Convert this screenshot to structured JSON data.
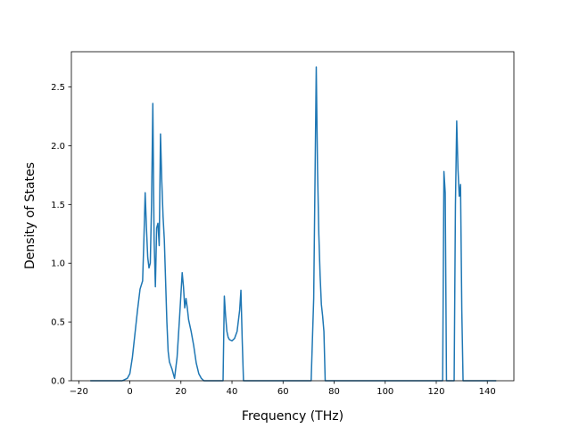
{
  "chart_data": {
    "type": "line",
    "title": "",
    "xlabel": "Frequency (THz)",
    "ylabel": "Density of States",
    "xlim": [
      -22.9,
      150.4
    ],
    "ylim": [
      0,
      2.8
    ],
    "grid": false,
    "line_color": "#1f77b4",
    "x_ticks": [
      -20,
      0,
      20,
      40,
      60,
      80,
      100,
      120,
      140
    ],
    "x_tick_labels": [
      "−20",
      "0",
      "20",
      "40",
      "60",
      "80",
      "100",
      "120",
      "140"
    ],
    "y_ticks": [
      0.0,
      0.5,
      1.0,
      1.5,
      2.0,
      2.5
    ],
    "y_tick_labels": [
      "0.0",
      "0.5",
      "1.0",
      "1.5",
      "2.0",
      "2.5"
    ],
    "series": [
      {
        "x": [
          -15.5,
          -3.0,
          -2.0,
          -1.0,
          0.0,
          1.0,
          2.0,
          3.0,
          4.0,
          5.0,
          5.5,
          6.0,
          6.5,
          7.0,
          7.5,
          8.0,
          8.5,
          9.0,
          9.5,
          10.0,
          10.5,
          11.0,
          11.5,
          12.0,
          12.5,
          13.0,
          13.5,
          14.5,
          15.0,
          15.5,
          16.5,
          17.5,
          18.5,
          19.5,
          20.5,
          21.0,
          21.5,
          22.0,
          22.5,
          23.0,
          23.5,
          24.0,
          25.0,
          26.0,
          27.0,
          28.0,
          29.0,
          30.0,
          36.5,
          37.0,
          37.5,
          38.0,
          38.5,
          39.0,
          40.0,
          41.0,
          42.0,
          43.0,
          43.5,
          44.0,
          44.5,
          45.0,
          71.0,
          72.0,
          73.0,
          73.5,
          74.0,
          74.5,
          75.0,
          75.5,
          76.0,
          76.5,
          77.0,
          122.5,
          123.0,
          123.5,
          124.0,
          124.5,
          125.0,
          127.0,
          127.5,
          128.0,
          128.5,
          129.0,
          129.5,
          130.0,
          130.5,
          131.0,
          143.5
        ],
        "y": [
          0.0,
          0.0,
          0.01,
          0.02,
          0.06,
          0.2,
          0.4,
          0.6,
          0.78,
          0.85,
          1.2,
          1.6,
          1.3,
          1.05,
          0.96,
          1.0,
          1.5,
          2.36,
          1.2,
          0.8,
          1.3,
          1.34,
          1.15,
          2.1,
          1.7,
          1.4,
          1.2,
          0.5,
          0.25,
          0.16,
          0.1,
          0.02,
          0.2,
          0.55,
          0.92,
          0.8,
          0.62,
          0.7,
          0.62,
          0.52,
          0.47,
          0.42,
          0.3,
          0.15,
          0.06,
          0.02,
          0.0,
          0.0,
          0.0,
          0.72,
          0.55,
          0.42,
          0.37,
          0.35,
          0.34,
          0.36,
          0.42,
          0.6,
          0.77,
          0.35,
          0.0,
          0.0,
          0.0,
          0.7,
          2.67,
          1.8,
          1.25,
          0.9,
          0.65,
          0.55,
          0.42,
          0.0,
          0.0,
          0.0,
          1.78,
          1.6,
          0.0,
          0.0,
          0.0,
          0.0,
          1.5,
          2.21,
          1.8,
          1.57,
          1.67,
          0.6,
          0.0,
          0.0,
          0.0
        ]
      }
    ]
  }
}
